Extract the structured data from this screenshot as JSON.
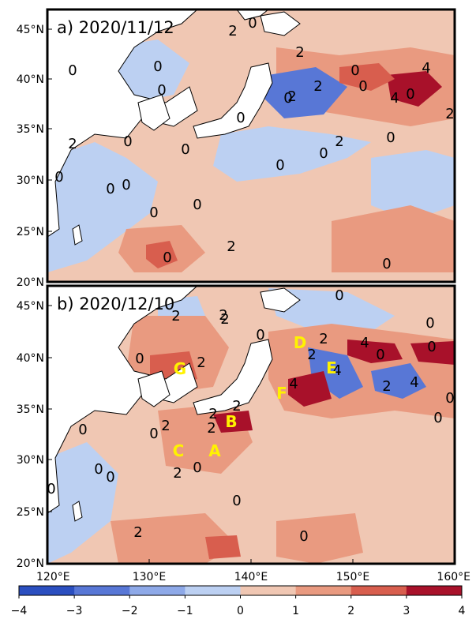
{
  "panels": [
    {
      "title": "a) 2020/11/12",
      "contour_labels": [
        "0",
        "0",
        "0",
        "2",
        "0",
        "2",
        "0",
        "0",
        "0",
        "2",
        "0",
        "0",
        "0",
        "0",
        "0",
        "2",
        "0",
        "0",
        "0",
        "0",
        "4",
        "4",
        "2",
        "0",
        "2",
        "0",
        "0",
        "2",
        "0",
        "2",
        "0"
      ]
    },
    {
      "title": "b) 2020/12/10",
      "contour_labels": [
        "2",
        "2",
        "0",
        "2",
        "2",
        "2",
        "2",
        "0",
        "0",
        "0",
        "0",
        "0",
        "0",
        "4",
        "4",
        "0",
        "4",
        "2",
        "2",
        "4",
        "2",
        "0",
        "0",
        "2",
        "0",
        "0",
        "0",
        "0",
        "2",
        "2",
        "2",
        "0",
        "0"
      ],
      "point_labels": [
        "A",
        "B",
        "C",
        "D",
        "E",
        "F",
        "G"
      ]
    }
  ],
  "axes": {
    "lat_ticks": [
      "45°N",
      "40°N",
      "35°N",
      "30°N",
      "25°N",
      "20°N"
    ],
    "lon_ticks": [
      "120°E",
      "130°E",
      "140°E",
      "150°E",
      "160°E"
    ]
  },
  "colorbar": {
    "tick_labels": [
      "−4",
      "−3",
      "−2",
      "−1",
      "0",
      "1",
      "2",
      "3",
      "4"
    ],
    "colors": [
      "#2b4fc0",
      "#5877d6",
      "#8ea9e8",
      "#bcd0f2",
      "#f0c7b3",
      "#e99a80",
      "#d85e4e",
      "#a8112a"
    ]
  },
  "colors": {
    "land": "#ffffff",
    "coast": "#000000",
    "point_label": "#fff200",
    "background_anomaly": "#f0c7b3"
  }
}
